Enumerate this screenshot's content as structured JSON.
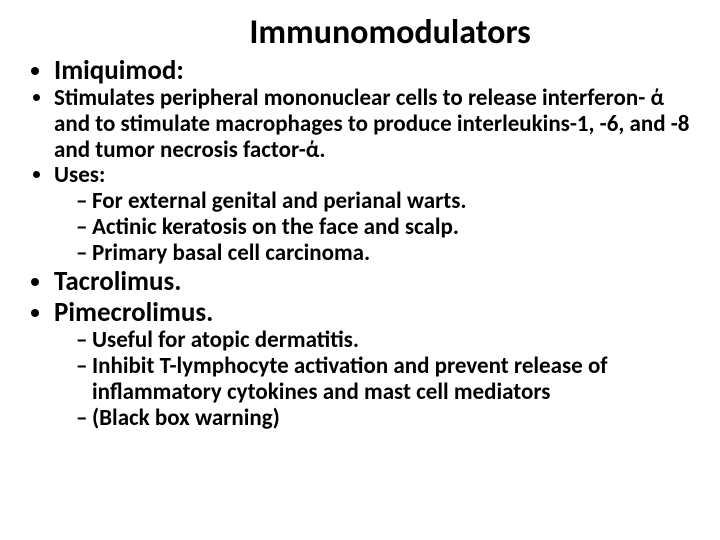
{
  "slide": {
    "title": "Immunomodulators",
    "background_color": "#ffffff",
    "text_color": "#000000",
    "font_family": "Calibri",
    "title_fontsize": 34,
    "big_fontsize": 27,
    "med_fontsize": 23,
    "items": [
      {
        "text": "Imiquimod:",
        "size": "big"
      },
      {
        "text": "Stimulates peripheral mononuclear cells to release interferon- ά  and to stimulate macrophages to produce interleukins-1, -6, and -8 and tumor necrosis factor-ά.",
        "size": "med"
      },
      {
        "text": "Uses:",
        "size": "med",
        "children": [
          "For external genital and perianal warts.",
          "Actinic keratosis on the face and scalp.",
          "Primary basal cell carcinoma."
        ]
      },
      {
        "text": "Tacrolimus.",
        "size": "big"
      },
      {
        "text": "Pimecrolimus.",
        "size": "big",
        "children": [
          "Useful for atopic dermatitis.",
          "Inhibit T-lymphocyte activation and prevent release of inflammatory cytokines and mast cell mediators",
          "(Black box warning)"
        ]
      }
    ]
  }
}
